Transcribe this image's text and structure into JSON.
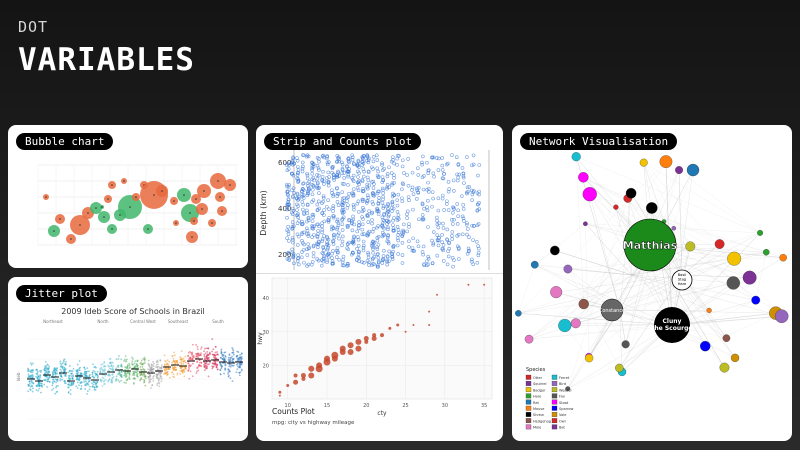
{
  "header": {
    "kicker": "DOT",
    "title": "VARIABLES"
  },
  "cards": {
    "bubble": "Bubble chart",
    "strip": "Strip and Counts plot",
    "jitter": "Jitter plot",
    "network": "Network Visualisation"
  },
  "strip_plot": {
    "ylabel": "Depth (km)",
    "yticks": [
      "600",
      "400",
      "200"
    ],
    "color": "#3a78d6"
  },
  "counts_plot": {
    "title": "Counts Plot",
    "subtitle": "mpg: city vs highway mileage",
    "xlabel": "cty",
    "ylabel": "hwy",
    "xticks": [
      "10",
      "15",
      "20",
      "25",
      "30",
      "35"
    ],
    "yticks": [
      "20",
      "30",
      "40"
    ],
    "color": "#c5482c"
  },
  "jitter_plot": {
    "title": "2009 Ideb Score of Schools in Brazil",
    "ylabel": "Ideb",
    "regions": [
      "Northeast",
      "North",
      "Central West",
      "Southeast",
      "South"
    ]
  },
  "network": {
    "nodes": {
      "matthias": "Matthias",
      "cluny": "Cluny\nthe Scourge",
      "constance": "Constance",
      "basil": "Basil\nStag\nHare"
    },
    "legend_title": "Species",
    "legend": [
      "Otter",
      "Squirrel",
      "Badger",
      "Hare",
      "Rat",
      "Mouse",
      "Shrew",
      "Hedgehog",
      "Mole",
      "Ferret",
      "Bird",
      "Weasel",
      "Fox",
      "Stoat",
      "Sparrow",
      "Vole",
      "Owl",
      "Bat"
    ]
  },
  "colors": {
    "bubble_orange": "#e8693d",
    "bubble_green": "#3fb66b",
    "network_green": "#1b8a1b"
  }
}
